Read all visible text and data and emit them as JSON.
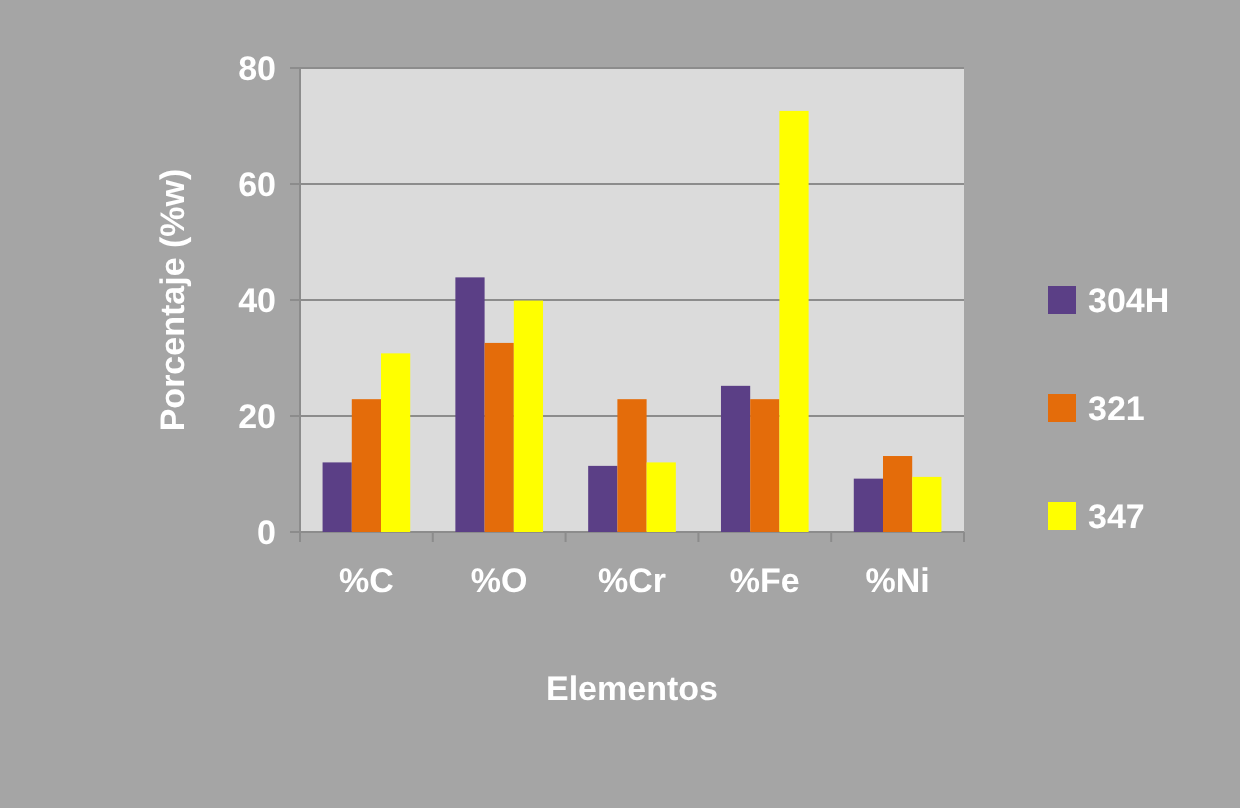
{
  "chart_data": {
    "type": "bar",
    "xlabel": "Elementos",
    "ylabel": "Porcentaje (%w)",
    "categories": [
      "%C",
      "%O",
      "%Cr",
      "%Fe",
      "%Ni"
    ],
    "series": [
      {
        "name": "304H",
        "color": "#5b3f86",
        "values": [
          12,
          43.9,
          11.4,
          25.2,
          9.2
        ]
      },
      {
        "name": "321",
        "color": "#e46c0a",
        "values": [
          22.9,
          32.6,
          22.9,
          22.9,
          13.1
        ]
      },
      {
        "name": "347",
        "color": "#ffff00",
        "values": [
          30.8,
          39.9,
          12,
          72.6,
          9.5
        ]
      }
    ],
    "ylim": [
      0,
      80
    ],
    "yticks": [
      0,
      20,
      40,
      60,
      80
    ],
    "grid": "y",
    "legend": "right"
  }
}
